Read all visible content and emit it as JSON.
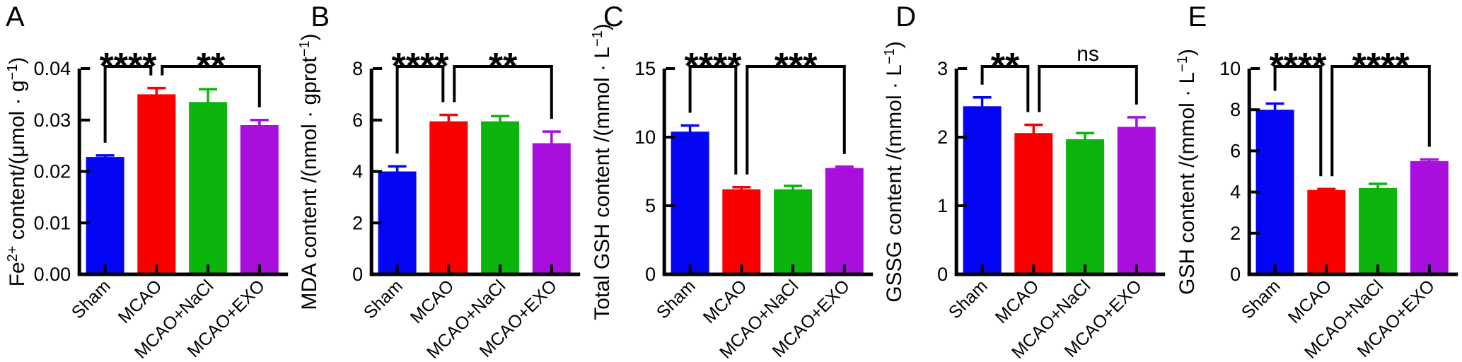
{
  "figure_title": "",
  "colors": {
    "bars": [
      "#0505F5",
      "#FB0000",
      "#0AB40A",
      "#A80FDC"
    ],
    "axis": "#000000",
    "background": "#ffffff"
  },
  "chart_data": [
    {
      "type": "bar",
      "panel": "A",
      "title": "",
      "xlabel": "",
      "ylabel": "Fe²⁺ content/(μmol · g⁻¹)",
      "ylabel_parts": [
        {
          "t": "Fe"
        },
        {
          "t": "2+",
          "sup": true
        },
        {
          "t": " content/(μmol · g"
        },
        {
          "t": "−1",
          "sup": true
        },
        {
          "t": ")"
        }
      ],
      "categories": [
        "Sham",
        "MCAO",
        "MCAO+NaCl",
        "MCAO+EXO"
      ],
      "values": [
        0.0228,
        0.035,
        0.0335,
        0.029
      ],
      "errors": [
        0.0003,
        0.0012,
        0.0025,
        0.001
      ],
      "ylim": [
        0,
        0.04
      ],
      "ytick_values": [
        0,
        0.01,
        0.02,
        0.03,
        0.04
      ],
      "ytick_labels": [
        "0.00",
        "0.01",
        "0.02",
        "0.03",
        "0.04"
      ],
      "grid": false,
      "legend": "none",
      "significance": [
        {
          "from": 0,
          "to": 1,
          "label": "****"
        },
        {
          "from": 1,
          "to": 3,
          "label": "**"
        }
      ]
    },
    {
      "type": "bar",
      "panel": "B",
      "title": "",
      "xlabel": "",
      "ylabel": "MDA content /(nmol · gprot⁻¹)",
      "ylabel_parts": [
        {
          "t": "MDA content /(nmol · gprot"
        },
        {
          "t": "−1",
          "sup": true
        },
        {
          "t": ")"
        }
      ],
      "categories": [
        "Sham",
        "MCAO",
        "MCAO+NaCl",
        "MCAO+EXO"
      ],
      "values": [
        4.0,
        5.95,
        5.95,
        5.1
      ],
      "errors": [
        0.2,
        0.25,
        0.2,
        0.45
      ],
      "ylim": [
        0,
        8
      ],
      "ytick_values": [
        0,
        2,
        4,
        6,
        8
      ],
      "ytick_labels": [
        "0",
        "2",
        "4",
        "6",
        "8"
      ],
      "grid": false,
      "legend": "none",
      "significance": [
        {
          "from": 0,
          "to": 1,
          "label": "****"
        },
        {
          "from": 1,
          "to": 3,
          "label": "**"
        }
      ]
    },
    {
      "type": "bar",
      "panel": "C",
      "title": "",
      "xlabel": "",
      "ylabel": "Total GSH content /(mmol · L⁻¹)",
      "ylabel_parts": [
        {
          "t": "Total GSH content /(mmol · L"
        },
        {
          "t": "−1",
          "sup": true
        },
        {
          "t": ")"
        }
      ],
      "categories": [
        "Sham",
        "MCAO",
        "MCAO+NaCl",
        "MCAO+EXO"
      ],
      "values": [
        10.4,
        6.2,
        6.2,
        7.75
      ],
      "errors": [
        0.45,
        0.15,
        0.25,
        0.1
      ],
      "ylim": [
        0,
        15
      ],
      "ytick_values": [
        0,
        5,
        10,
        15
      ],
      "ytick_labels": [
        "0",
        "5",
        "10",
        "15"
      ],
      "grid": false,
      "legend": "none",
      "significance": [
        {
          "from": 0,
          "to": 1,
          "label": "****"
        },
        {
          "from": 1,
          "to": 3,
          "label": "***"
        }
      ]
    },
    {
      "type": "bar",
      "panel": "D",
      "title": "",
      "xlabel": "",
      "ylabel": "GSSG content /(mmol · L⁻¹)",
      "ylabel_parts": [
        {
          "t": "GSSG content /(mmol · L"
        },
        {
          "t": "−1",
          "sup": true
        },
        {
          "t": ")"
        }
      ],
      "categories": [
        "Sham",
        "MCAO",
        "MCAO+NaCl",
        "MCAO+EXO"
      ],
      "values": [
        2.45,
        2.06,
        1.97,
        2.15
      ],
      "errors": [
        0.13,
        0.12,
        0.09,
        0.14
      ],
      "ylim": [
        0,
        3
      ],
      "ytick_values": [
        0,
        1,
        2,
        3
      ],
      "ytick_labels": [
        "0",
        "1",
        "2",
        "3"
      ],
      "grid": false,
      "legend": "none",
      "significance": [
        {
          "from": 0,
          "to": 1,
          "label": "**"
        },
        {
          "from": 1,
          "to": 3,
          "label": "ns"
        }
      ]
    },
    {
      "type": "bar",
      "panel": "E",
      "title": "",
      "xlabel": "",
      "ylabel": "GSH content /(mmol · L⁻¹)",
      "ylabel_parts": [
        {
          "t": "GSH content /(mmol · L"
        },
        {
          "t": "−1",
          "sup": true
        },
        {
          "t": ")"
        }
      ],
      "categories": [
        "Sham",
        "MCAO",
        "MCAO+NaCl",
        "MCAO+EXO"
      ],
      "values": [
        8.0,
        4.1,
        4.2,
        5.5
      ],
      "errors": [
        0.3,
        0.05,
        0.2,
        0.08
      ],
      "ylim": [
        0,
        10
      ],
      "ytick_values": [
        0,
        2,
        4,
        6,
        8,
        10
      ],
      "ytick_labels": [
        "0",
        "2",
        "4",
        "6",
        "8",
        "10"
      ],
      "grid": false,
      "legend": "none",
      "significance": [
        {
          "from": 0,
          "to": 1,
          "label": "****"
        },
        {
          "from": 1,
          "to": 3,
          "label": "****"
        }
      ]
    }
  ]
}
